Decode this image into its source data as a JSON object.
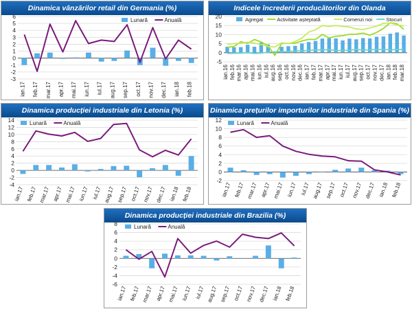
{
  "colors": {
    "title_bg": "#1a5ea8",
    "bar": "#5aaee6",
    "line": "#7a1a7a",
    "grid": "#d9d9d9",
    "axis": "#444444",
    "agregat": "#58aee6",
    "activitate": "#9adb2a",
    "comenzi": "#c6eb60",
    "stocuri": "#6fd3c6",
    "bars_nl": "#58aee6"
  },
  "chart_data": [
    {
      "id": "germany",
      "type": "bar+line",
      "title": "Dinamica vânzărilor retail din Germania (%)",
      "legend": [
        "Lunară",
        "Anuală"
      ],
      "legend_position": "top-right",
      "categories": [
        "ian.17",
        "feb.17",
        "mar.17",
        "apr.17",
        "mai.17",
        "iun.17",
        "iul.17",
        "aug.17",
        "sep.17",
        "oct.17",
        "nov.17",
        "dec.17",
        "ian.18",
        "feb.18"
      ],
      "series": [
        {
          "name": "Lunară",
          "kind": "bar",
          "values": [
            -1.0,
            0.7,
            0.8,
            -0.1,
            0.1,
            0.8,
            -0.5,
            -0.4,
            1.1,
            -1.0,
            1.5,
            -1.1,
            -0.4,
            -0.7
          ]
        },
        {
          "name": "Anuală",
          "kind": "line",
          "values": [
            3.4,
            -1.9,
            4.9,
            0.9,
            5.4,
            2.1,
            2.6,
            2.4,
            4.8,
            -0.6,
            4.4,
            -0.1,
            2.6,
            1.3
          ]
        }
      ],
      "ylim": [
        -3,
        6
      ],
      "yticks": [
        -3,
        -2,
        -1,
        0,
        1,
        2,
        3,
        4,
        5,
        6
      ]
    },
    {
      "id": "netherlands",
      "type": "bar+line",
      "title": "Indicele încrederii producătorilor din Olanda",
      "legend": [
        "Agregat",
        "Activitate așteptată",
        "Comenzi noi",
        "Stocuri"
      ],
      "legend_position": "top",
      "categories": [
        "ian.16",
        "feb.16",
        "mar.16",
        "apr.16",
        "mai.16",
        "iun.16",
        "iul.16",
        "aug.16",
        "sep.16",
        "oct.16",
        "nov.16",
        "dec.16",
        "ian.17",
        "feb.17",
        "mar.17",
        "apr.17",
        "mai.17",
        "iun.17",
        "iul.17",
        "aug.17",
        "sep.17",
        "oct.17",
        "nov.17",
        "dec.17",
        "ian.18",
        "feb.18",
        "mar.18"
      ],
      "series": [
        {
          "name": "Agregat",
          "kind": "bar",
          "values": [
            3.3,
            3.0,
            3.1,
            4.4,
            3.3,
            5.6,
            4.6,
            0.6,
            3.3,
            3.6,
            3.8,
            5.1,
            5.9,
            6.5,
            7.8,
            8.0,
            7.9,
            6.8,
            7.8,
            7.4,
            8.1,
            7.9,
            8.8,
            9.0,
            10.5,
            11.2,
            9.5
          ]
        },
        {
          "name": "Activitate așteptată",
          "kind": "line",
          "values": [
            3.0,
            3.4,
            6.1,
            5.2,
            7.3,
            5.9,
            3.9,
            -1.5,
            5.1,
            5.2,
            5.3,
            6.5,
            7.4,
            7.3,
            10.1,
            8.2,
            9.1,
            9.4,
            10.2,
            10.2,
            10.8,
            9.7,
            11.2,
            13.4,
            16.5,
            16.0,
            12.9
          ]
        },
        {
          "name": "Comenzi noi",
          "kind": "line",
          "values": [
            4.7,
            5.0,
            5.3,
            5.8,
            5.3,
            4.5,
            3.4,
            3.2,
            5.5,
            5.0,
            6.2,
            8.1,
            11.4,
            12.7,
            15.0,
            14.6,
            15.0,
            14.5,
            14.2,
            13.1,
            12.8,
            13.7,
            14.7,
            16.2,
            16.4,
            15.3,
            14.8
          ]
        },
        {
          "name": "Stocuri",
          "kind": "line",
          "values": [
            -0.4,
            -0.3,
            -0.2,
            0.0,
            -0.4,
            -0.2,
            0.3,
            0.5,
            0.6,
            0.7,
            1.0,
            1.0,
            1.2,
            1.5,
            1.6,
            1.7,
            1.2,
            1.3,
            1.4,
            1.8,
            1.5,
            1.6,
            1.8,
            1.8,
            1.6,
            1.8,
            1.7
          ]
        }
      ],
      "ylim": [
        -5,
        20
      ],
      "yticks": [
        -5,
        0,
        5,
        10,
        15,
        20
      ]
    },
    {
      "id": "latvia",
      "type": "bar+line",
      "title": "Dinamica producției industriale din Letonia (%)",
      "legend": [
        "Lunară",
        "Anuală"
      ],
      "legend_position": "top-left",
      "categories": [
        "ian.17",
        "feb.17",
        "mar.17",
        "apr.17",
        "mai.17",
        "iun.17",
        "iul.17",
        "aug.17",
        "sep.17",
        "oct.17",
        "nov.17",
        "dec.17",
        "ian.18",
        "feb.18"
      ],
      "series": [
        {
          "name": "Lunară",
          "kind": "bar",
          "values": [
            -1.0,
            1.5,
            1.5,
            0.8,
            1.7,
            -0.3,
            0.4,
            1.2,
            1.3,
            -1.9,
            0.6,
            1.5,
            -1.5,
            4.0
          ]
        },
        {
          "name": "Anuală",
          "kind": "line",
          "values": [
            5.3,
            11.0,
            10.1,
            9.6,
            10.6,
            8.1,
            8.9,
            12.8,
            13.1,
            5.7,
            3.8,
            5.6,
            4.3,
            8.8
          ]
        }
      ],
      "ylim": [
        -4,
        14
      ],
      "yticks": [
        -4,
        -2,
        0,
        2,
        4,
        6,
        8,
        10,
        12,
        14
      ]
    },
    {
      "id": "spain",
      "type": "bar+line",
      "title": "Dinamica prețurilor importurilor industriale din Spania (%)",
      "legend": [
        "Lunară",
        "Anuală"
      ],
      "legend_position": "top-left",
      "categories": [
        "ian.17",
        "feb.17",
        "mar.17",
        "apr.17",
        "mai.17",
        "iun.17",
        "iul.17",
        "aug.17",
        "sep.17",
        "oct.17",
        "nov.17",
        "dec.17",
        "ian.18",
        "feb.18"
      ],
      "series": [
        {
          "name": "Lunară",
          "kind": "bar",
          "values": [
            1.0,
            0.4,
            -0.7,
            -0.5,
            -1.3,
            -0.9,
            -0.5,
            0.0,
            0.5,
            0.8,
            1.0,
            0.4,
            0.3,
            -0.5
          ]
        },
        {
          "name": "Anuală",
          "kind": "line",
          "values": [
            9.2,
            9.8,
            8.0,
            8.4,
            6.0,
            4.8,
            4.1,
            3.7,
            3.5,
            2.6,
            2.5,
            0.5,
            0.0,
            -0.7
          ]
        }
      ],
      "ylim": [
        -2,
        12
      ],
      "yticks": [
        -2,
        0,
        2,
        4,
        6,
        8,
        10,
        12
      ]
    },
    {
      "id": "brazil",
      "type": "bar+line",
      "title": "Dinamica producției industriale din Brazilia (%)",
      "legend": [
        "Lunară",
        "Anuală"
      ],
      "legend_position": "top-left",
      "categories": [
        "ian.17",
        "feb.17",
        "mar.17",
        "apr.17",
        "mai.17",
        "iun.17",
        "iul.17",
        "aug.17",
        "sep.17",
        "oct.17",
        "nov.17",
        "dec.17",
        "ian.18",
        "feb.18"
      ],
      "series": [
        {
          "name": "Lunară",
          "kind": "bar",
          "values": [
            0.6,
            1.0,
            -2.3,
            1.1,
            0.7,
            0.7,
            0.6,
            -0.5,
            0.5,
            0.0,
            0.6,
            3.0,
            -2.3,
            0.2
          ]
        },
        {
          "name": "Anuală",
          "kind": "line",
          "values": [
            2.0,
            -0.2,
            1.6,
            -4.3,
            4.6,
            1.2,
            3.0,
            4.0,
            2.6,
            5.6,
            4.9,
            4.6,
            5.9,
            2.9
          ]
        }
      ],
      "ylim": [
        -6,
        8
      ],
      "yticks": [
        -6,
        -4,
        -2,
        0,
        2,
        4,
        6,
        8
      ]
    }
  ]
}
